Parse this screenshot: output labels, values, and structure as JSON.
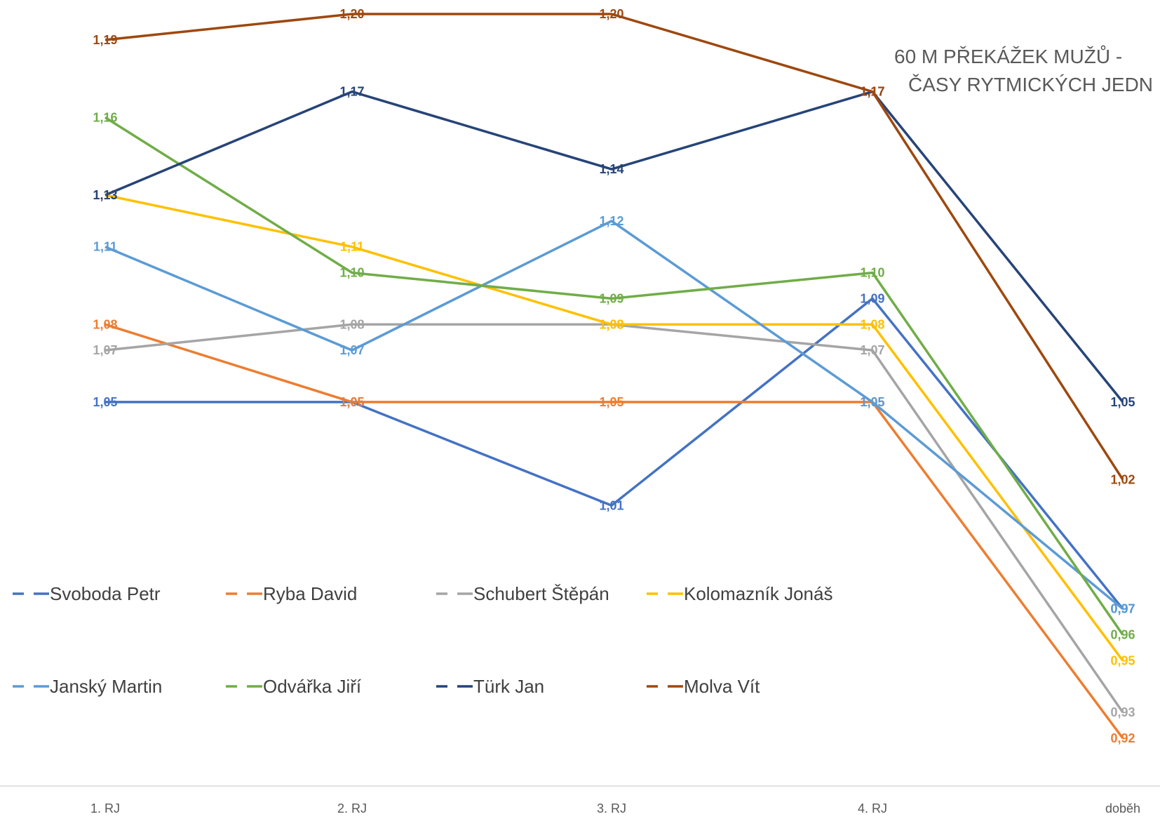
{
  "chart_data": {
    "type": "line",
    "title": [
      "60 M PŘEKÁŽEK MUŽŮ -",
      "ČASY RYTMICKÝCH JEDN"
    ],
    "categories": [
      "1. RJ",
      "2. RJ",
      "3. RJ",
      "4. RJ",
      "doběh"
    ],
    "xlabel": "",
    "ylabel": "",
    "ylim": [
      0.9,
      1.22
    ],
    "grid": false,
    "legend_position": "bottom-left",
    "series": [
      {
        "name": "Svoboda Petr",
        "color": "#4472C4",
        "values": [
          1.05,
          1.05,
          1.01,
          1.09,
          0.97
        ],
        "labels": [
          "1,05",
          "1,05",
          "1,01",
          "1,09",
          "0,97"
        ]
      },
      {
        "name": "Ryba David",
        "color": "#ED7D31",
        "values": [
          1.08,
          1.05,
          1.05,
          1.05,
          0.92
        ],
        "labels": [
          "1,08",
          "1,05",
          "1,05",
          "1,05",
          "0,92"
        ]
      },
      {
        "name": "Schubert Štěpán",
        "color": "#A5A5A5",
        "values": [
          1.07,
          1.08,
          1.08,
          1.07,
          0.93
        ],
        "labels": [
          "1,07",
          "1,08",
          "1,08",
          "1,07",
          "0,93"
        ]
      },
      {
        "name": "Kolomazník Jonáš",
        "color": "#FFC000",
        "values": [
          1.13,
          1.11,
          1.08,
          1.08,
          0.95
        ],
        "labels": [
          "1,13",
          "1,11",
          "1,08",
          "1,08",
          "0,95"
        ]
      },
      {
        "name": "Janský Martin",
        "color": "#5B9BD5",
        "values": [
          1.11,
          1.07,
          1.12,
          1.05,
          0.97
        ],
        "labels": [
          "1,11",
          "1,07",
          "1,12",
          "1,05",
          "0,97"
        ]
      },
      {
        "name": "Odvářka Jiří",
        "color": "#70AD47",
        "values": [
          1.16,
          1.1,
          1.09,
          1.1,
          0.96
        ],
        "labels": [
          "1,16",
          "1,10",
          "1,09",
          "1,10",
          "0,96"
        ]
      },
      {
        "name": "Türk Jan",
        "color": "#264478",
        "values": [
          1.13,
          1.17,
          1.14,
          1.17,
          1.05
        ],
        "labels": [
          "1,13",
          "1,17",
          "1,14",
          "1,17",
          "1,05"
        ]
      },
      {
        "name": "Molva Vít",
        "color": "#9E480E",
        "values": [
          1.19,
          1.2,
          1.2,
          1.17,
          1.02
        ],
        "labels": [
          "1,19",
          "1,20",
          "1,20",
          "1,17",
          "1,02"
        ]
      }
    ]
  }
}
